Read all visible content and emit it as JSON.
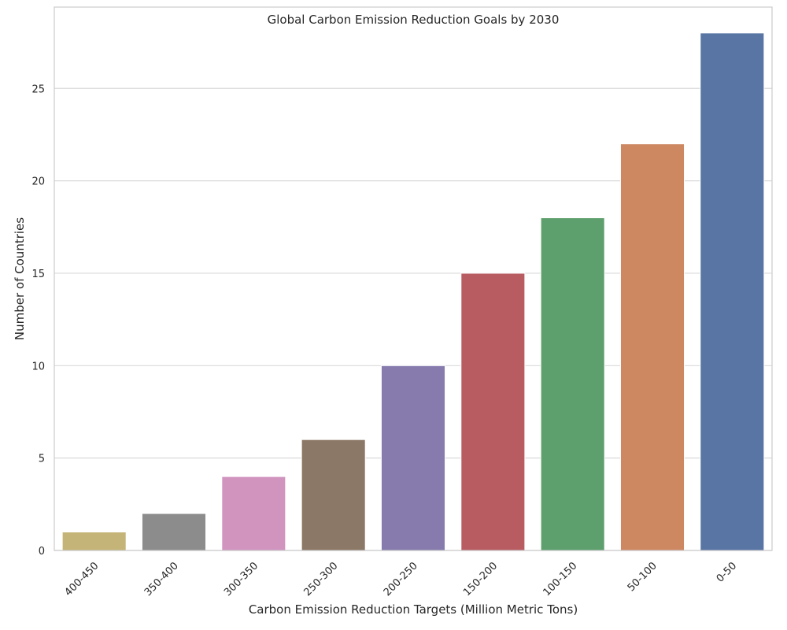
{
  "chart_data": {
    "type": "bar",
    "title": "Global Carbon Emission Reduction Goals by 2030",
    "xlabel": "Carbon Emission Reduction Targets (Million Metric Tons)",
    "ylabel": "Number of Countries",
    "categories": [
      "400-450",
      "350-400",
      "300-350",
      "250-300",
      "200-250",
      "150-200",
      "100-150",
      "50-100",
      "0-50"
    ],
    "values": [
      1,
      2,
      4,
      6,
      10,
      15,
      18,
      22,
      28
    ],
    "colors": [
      "#c4b477",
      "#8c8c8c",
      "#d094bf",
      "#8c7866",
      "#877bae",
      "#b85c62",
      "#5e9f6e",
      "#cd8862",
      "#5975a4"
    ],
    "ylim": [
      0,
      29.4
    ],
    "yticks": [
      0,
      5,
      10,
      15,
      20,
      25
    ],
    "grid": true,
    "grid_axis": "y",
    "legend": "none"
  }
}
